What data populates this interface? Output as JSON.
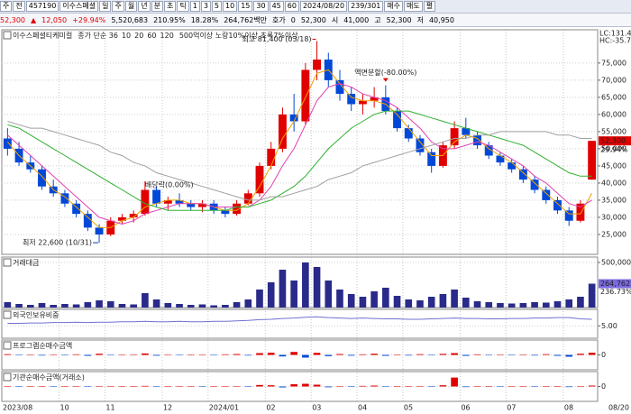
{
  "toolbar": {
    "items": [
      "주",
      "전",
      "457190",
      "이수스페셜",
      "일",
      "주",
      "월",
      "년",
      "분",
      "초",
      "틱",
      "1",
      "3",
      "5",
      "10",
      "15",
      "30",
      "45",
      "60",
      "2024/08/20",
      "239/301",
      "매수",
      "매도",
      "펼"
    ]
  },
  "quote": {
    "items": [
      "52,300",
      "▲",
      "12,050",
      "+29.94%",
      "5,520,683",
      "210.95%",
      "18.28%",
      "264,762백만",
      "호가",
      "0",
      "52,300",
      "시",
      "41,000",
      "고",
      "52,300",
      "저",
      "40,950"
    ]
  },
  "chart_data": [
    {
      "type": "candlestick",
      "title": "이수스페셜티케미컬",
      "legend_label": "종가 단순 36",
      "note": "500억이상 노랑10%이상 초록7%이상",
      "open": [
        53000,
        50000,
        46000,
        44000,
        39000,
        37000,
        34000,
        31000,
        27000,
        25000,
        29000,
        30000,
        31000,
        38000,
        34000,
        35000,
        34000,
        33000,
        34000,
        32000,
        31000,
        34000,
        37000,
        45000,
        50000,
        60000,
        58000,
        73000,
        76000,
        70000,
        66000,
        63000,
        64000,
        65000,
        61000,
        56000,
        53000,
        49000,
        45000,
        51000,
        56000,
        54000,
        51000,
        48000,
        46000,
        44000,
        41000,
        38000,
        35000,
        32000,
        29000,
        41000
      ],
      "high": [
        56000,
        52000,
        48000,
        45000,
        41000,
        38000,
        35000,
        32000,
        28000,
        30000,
        31000,
        32000,
        40500,
        39000,
        36000,
        37000,
        35000,
        35000,
        35000,
        33000,
        35000,
        38000,
        46000,
        52000,
        62000,
        66000,
        75000,
        81400,
        78000,
        73000,
        68000,
        66000,
        68000,
        68500,
        62000,
        57000,
        54000,
        50000,
        52000,
        58000,
        59000,
        55000,
        52000,
        49000,
        47000,
        45000,
        42000,
        39000,
        36000,
        33000,
        35000,
        52300
      ],
      "low": [
        48000,
        45000,
        43000,
        38000,
        36000,
        33000,
        30000,
        26000,
        22600,
        24500,
        28000,
        28500,
        30500,
        33000,
        32000,
        33000,
        32000,
        31500,
        31000,
        30000,
        30500,
        33500,
        36000,
        44000,
        49000,
        55000,
        57000,
        70000,
        68000,
        64000,
        61000,
        60000,
        62000,
        60000,
        55000,
        52000,
        48000,
        43000,
        44500,
        50000,
        53000,
        50000,
        47000,
        45000,
        43000,
        40000,
        37000,
        34000,
        31000,
        27500,
        28500,
        40950
      ],
      "close": [
        50000,
        46000,
        44000,
        39000,
        37000,
        34000,
        31000,
        27000,
        25000,
        29000,
        30000,
        31000,
        38000,
        34000,
        35000,
        34000,
        33000,
        34000,
        32000,
        31000,
        34000,
        37000,
        45000,
        50000,
        60000,
        58000,
        73000,
        76000,
        70000,
        66000,
        63000,
        64000,
        65000,
        61000,
        56000,
        53000,
        49000,
        45000,
        51000,
        56000,
        54000,
        51000,
        48000,
        46000,
        44000,
        41000,
        38000,
        35000,
        32000,
        29000,
        34000,
        52300
      ],
      "up_color": "#e00000",
      "down_color": "#0048d8",
      "series": [
        {
          "name": "10",
          "color": "#f0a000",
          "values": [
            52000,
            48000,
            45000,
            42000,
            38000,
            36000,
            33000,
            30000,
            27000,
            27000,
            29000,
            30000,
            33000,
            34000,
            35000,
            35000,
            34000,
            34000,
            33000,
            32000,
            32000,
            34000,
            39000,
            45000,
            53000,
            58000,
            65000,
            72000,
            73000,
            69000,
            65000,
            64000,
            64000,
            63000,
            60000,
            56000,
            52000,
            48000,
            48000,
            52000,
            54000,
            53000,
            50000,
            48000,
            46000,
            43000,
            40000,
            37000,
            34000,
            31000,
            31000,
            37000
          ]
        },
        {
          "name": "20",
          "color": "#e040b0",
          "values": [
            54000,
            51000,
            48000,
            45000,
            42000,
            39000,
            36000,
            33000,
            30000,
            29000,
            28000,
            29000,
            31000,
            32000,
            33000,
            34000,
            34000,
            34000,
            33000,
            33000,
            33000,
            33000,
            35000,
            39000,
            45000,
            50000,
            57000,
            64000,
            68000,
            69000,
            68000,
            66000,
            65000,
            64000,
            62000,
            59000,
            56000,
            52000,
            50000,
            50000,
            51000,
            52000,
            51000,
            49000,
            47000,
            45000,
            42000,
            40000,
            37000,
            34000,
            33000,
            35000
          ]
        },
        {
          "name": "60",
          "color": "#30b030",
          "values": [
            57000,
            56000,
            54000,
            52000,
            50000,
            48000,
            46000,
            44000,
            42000,
            40000,
            38000,
            36000,
            34000,
            33000,
            32000,
            32000,
            32000,
            32000,
            32000,
            32000,
            33000,
            33000,
            34000,
            35000,
            37000,
            39000,
            42000,
            46000,
            50000,
            53000,
            56000,
            58000,
            60000,
            61000,
            61000,
            61000,
            60000,
            59000,
            58000,
            57000,
            56000,
            55000,
            54000,
            53000,
            52000,
            51000,
            49000,
            47000,
            45000,
            43000,
            42000,
            42000
          ]
        },
        {
          "name": "120",
          "color": "#a0a0a0",
          "values": [
            58000,
            57000,
            56000,
            56000,
            55000,
            54000,
            53000,
            52000,
            51000,
            49000,
            48000,
            46000,
            45000,
            43000,
            42000,
            41000,
            40000,
            39000,
            38000,
            37000,
            36000,
            35000,
            35000,
            36000,
            36000,
            37000,
            38000,
            39000,
            41000,
            42000,
            43000,
            45000,
            46000,
            47000,
            48000,
            49000,
            50000,
            51000,
            52000,
            53000,
            53000,
            54000,
            54000,
            55000,
            55000,
            55000,
            55000,
            55000,
            54000,
            54000,
            53000,
            53000
          ]
        }
      ],
      "ylim": [
        19200,
        84700
      ],
      "yticks": [
        {
          "value": 25000,
          "label": "25,000"
        },
        {
          "value": 30000,
          "label": "30,000"
        },
        {
          "value": 35000,
          "label": "35,000"
        },
        {
          "value": 40000,
          "label": "40,000"
        },
        {
          "value": 45000,
          "label": "45,000"
        },
        {
          "value": 50000,
          "label": "50,000"
        },
        {
          "value": 55000,
          "label": "55,000"
        },
        {
          "value": 60000,
          "label": "60,000"
        },
        {
          "value": 65000,
          "label": "65,000"
        },
        {
          "value": 70000,
          "label": "70,000"
        },
        {
          "value": 75000,
          "label": "75,000"
        }
      ],
      "annotations": [
        "최고 81,400 (03/18)",
        "최저 22,600 (10/31)",
        "배당락(0.00%)",
        "액면분할(-80.00%)"
      ],
      "last_label": "52,300",
      "change_label": "29.94%",
      "side_labels": [
        "LC:131.40",
        "HC:-35.70"
      ]
    },
    {
      "type": "bar",
      "title": "거래대금",
      "color": "#2a2a8a",
      "values": [
        60000,
        40000,
        30000,
        50000,
        30000,
        40000,
        35000,
        60000,
        80000,
        70000,
        40000,
        35000,
        160000,
        90000,
        50000,
        40000,
        30000,
        35000,
        25000,
        30000,
        60000,
        90000,
        200000,
        280000,
        420000,
        300000,
        500000,
        450000,
        300000,
        200000,
        150000,
        120000,
        180000,
        220000,
        130000,
        90000,
        80000,
        120000,
        150000,
        200000,
        110000,
        70000,
        60000,
        50000,
        45000,
        50000,
        60000,
        55000,
        70000,
        90000,
        120000,
        264762
      ],
      "ylim": [
        0,
        560000
      ],
      "yticks": [
        {
          "value": 500000,
          "label": "500,000"
        }
      ],
      "last_label": "264,762",
      "ratio_label": "236.73%"
    },
    {
      "type": "line",
      "title": "외국인보유비중",
      "color": "#7070d0",
      "values": [
        5.6,
        5.6,
        5.7,
        5.7,
        5.8,
        5.8,
        5.9,
        5.8,
        5.9,
        5.9,
        6.0,
        6.0,
        6.1,
        6.0,
        6.0,
        6.1,
        6.0,
        6.0,
        6.1,
        6.1,
        6.2,
        6.3,
        6.5,
        6.6,
        6.8,
        6.9,
        7.1,
        7.2,
        7.0,
        6.9,
        6.8,
        6.9,
        6.8,
        6.7,
        6.7,
        6.6,
        6.6,
        6.7,
        6.8,
        6.9,
        6.8,
        6.8,
        6.7,
        6.7,
        6.8,
        6.8,
        6.9,
        6.9,
        7.0,
        7.0,
        6.7,
        6.6
      ],
      "ylim": [
        2,
        9
      ],
      "yticks": [
        {
          "value": 5,
          "label": "5.00"
        }
      ]
    },
    {
      "type": "bar",
      "title": "프로그램순매수금액",
      "up_color": "#e00000",
      "down_color": "#0048d8",
      "values": [
        5,
        -3,
        2,
        -4,
        3,
        -2,
        4,
        -6,
        8,
        -3,
        2,
        1,
        10,
        -5,
        3,
        -2,
        1,
        2,
        -3,
        4,
        6,
        -4,
        12,
        15,
        -10,
        20,
        -18,
        14,
        -8,
        6,
        -5,
        4,
        8,
        -6,
        3,
        -4,
        5,
        -3,
        7,
        12,
        -6,
        4,
        -3,
        2,
        -2,
        3,
        -4,
        5,
        -6,
        -12,
        8,
        15
      ],
      "ylim": [
        -100,
        100
      ],
      "yticks": [
        0
      ]
    },
    {
      "type": "bar",
      "title": "기관순매수금액(거래소)",
      "up_color": "#e00000",
      "down_color": "#0048d8",
      "values": [
        2,
        -1,
        3,
        0,
        -2,
        1,
        2,
        -1,
        3,
        2,
        0,
        1,
        4,
        -2,
        1,
        0,
        1,
        -1,
        2,
        1,
        3,
        -2,
        10,
        8,
        -6,
        15,
        18,
        12,
        -5,
        3,
        -2,
        4,
        6,
        -3,
        2,
        1,
        3,
        -2,
        8,
        60,
        -4,
        2,
        1,
        -2,
        1,
        2,
        -3,
        1,
        2,
        -4,
        3,
        6
      ],
      "ylim": [
        -100,
        100
      ],
      "yticks": [
        0
      ],
      "categories": [
        "2023/08",
        null,
        null,
        null,
        null,
        "10",
        null,
        null,
        null,
        "11",
        null,
        null,
        null,
        null,
        "12",
        null,
        null,
        null,
        "2024/01",
        null,
        null,
        null,
        null,
        "02",
        null,
        null,
        null,
        "03",
        null,
        null,
        null,
        "04",
        null,
        null,
        null,
        "05",
        null,
        null,
        null,
        null,
        "06",
        null,
        null,
        null,
        "07",
        null,
        null,
        null,
        null,
        "08",
        null,
        null
      ],
      "last_date": "08/20"
    }
  ]
}
